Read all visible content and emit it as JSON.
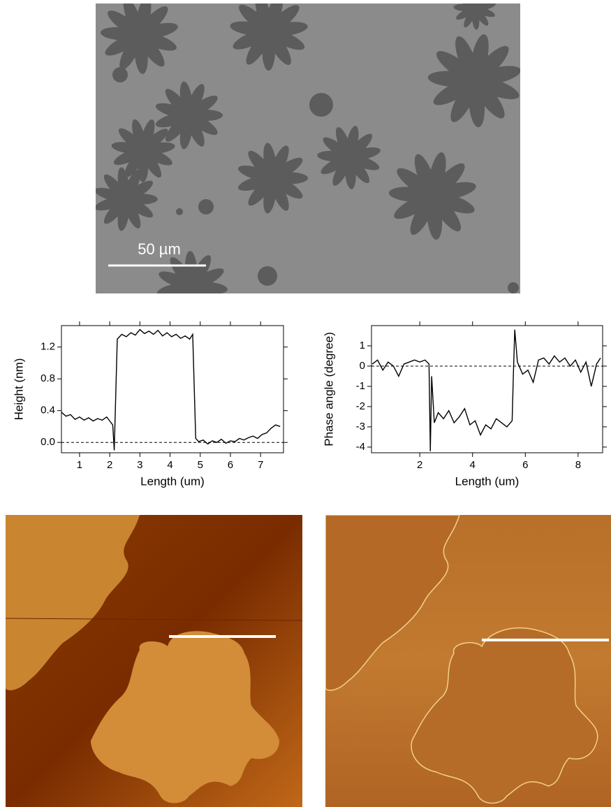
{
  "images": {
    "scale_bar": "50 µm"
  },
  "chart_data": [
    {
      "type": "line",
      "xlabel": "Length (um)",
      "ylabel": "Height (nm)",
      "x": [
        0.4,
        0.55,
        0.7,
        0.85,
        1.0,
        1.15,
        1.3,
        1.45,
        1.6,
        1.75,
        1.9,
        2.0,
        2.1,
        2.15,
        2.25,
        2.4,
        2.55,
        2.7,
        2.85,
        3.0,
        3.15,
        3.3,
        3.45,
        3.6,
        3.75,
        3.9,
        4.05,
        4.2,
        4.35,
        4.5,
        4.65,
        4.75,
        4.85,
        4.95,
        5.1,
        5.25,
        5.4,
        5.55,
        5.7,
        5.85,
        6.0,
        6.15,
        6.3,
        6.45,
        6.6,
        6.75,
        6.9,
        7.05,
        7.2,
        7.35,
        7.5,
        7.65
      ],
      "series": [
        {
          "color": "#000000",
          "values": [
            0.38,
            0.33,
            0.35,
            0.29,
            0.32,
            0.28,
            0.31,
            0.27,
            0.3,
            0.28,
            0.32,
            0.27,
            0.22,
            -0.1,
            1.3,
            1.36,
            1.33,
            1.38,
            1.35,
            1.42,
            1.37,
            1.4,
            1.36,
            1.41,
            1.34,
            1.38,
            1.33,
            1.36,
            1.31,
            1.34,
            1.3,
            1.36,
            0.05,
            0.01,
            0.03,
            -0.02,
            0.02,
            0.0,
            0.04,
            -0.01,
            0.02,
            0.01,
            0.05,
            0.03,
            0.06,
            0.08,
            0.05,
            0.1,
            0.12,
            0.18,
            0.22,
            0.2
          ]
        }
      ],
      "xlim": [
        0.4,
        7.76
      ],
      "xticks": [
        1,
        2,
        3,
        4,
        5,
        6,
        7
      ],
      "ylim": [
        -0.13,
        1.47
      ],
      "yticks": [
        {
          "value": 0,
          "label": "0.0"
        },
        0.4,
        0.8,
        1.2
      ],
      "hline": 0
    },
    {
      "type": "line",
      "xlabel": "Length (um)",
      "ylabel": "Phase angle (degree)",
      "x": [
        0.2,
        0.4,
        0.6,
        0.8,
        1.0,
        1.2,
        1.4,
        1.6,
        1.8,
        2.0,
        2.2,
        2.35,
        2.4,
        2.45,
        2.55,
        2.7,
        2.9,
        3.1,
        3.3,
        3.5,
        3.7,
        3.9,
        4.1,
        4.3,
        4.5,
        4.7,
        4.9,
        5.1,
        5.3,
        5.5,
        5.55,
        5.6,
        5.7,
        5.9,
        6.1,
        6.3,
        6.5,
        6.7,
        6.9,
        7.1,
        7.3,
        7.5,
        7.7,
        7.9,
        8.1,
        8.3,
        8.5,
        8.7,
        8.85
      ],
      "series": [
        {
          "color": "#000000",
          "values": [
            0.1,
            0.3,
            -0.2,
            0.2,
            0.0,
            -0.5,
            0.1,
            0.2,
            0.3,
            0.2,
            0.3,
            0.1,
            -4.2,
            -0.5,
            -2.8,
            -2.3,
            -2.6,
            -2.2,
            -2.8,
            -2.5,
            -2.1,
            -2.9,
            -2.7,
            -3.4,
            -2.9,
            -3.1,
            -2.6,
            -2.8,
            -3.0,
            -2.7,
            -0.3,
            1.8,
            0.2,
            -0.4,
            -0.2,
            -0.8,
            0.3,
            0.4,
            0.1,
            0.5,
            0.2,
            0.4,
            0.0,
            0.3,
            -0.3,
            0.2,
            -1.0,
            0.1,
            0.4
          ]
        }
      ],
      "xlim": [
        0.17,
        8.93
      ],
      "xticks": [
        2,
        4,
        6,
        8
      ],
      "ylim": [
        -4.28,
        2.0
      ],
      "yticks": [
        -4,
        -3,
        -2,
        -1,
        0,
        1
      ],
      "hline": 0
    }
  ]
}
